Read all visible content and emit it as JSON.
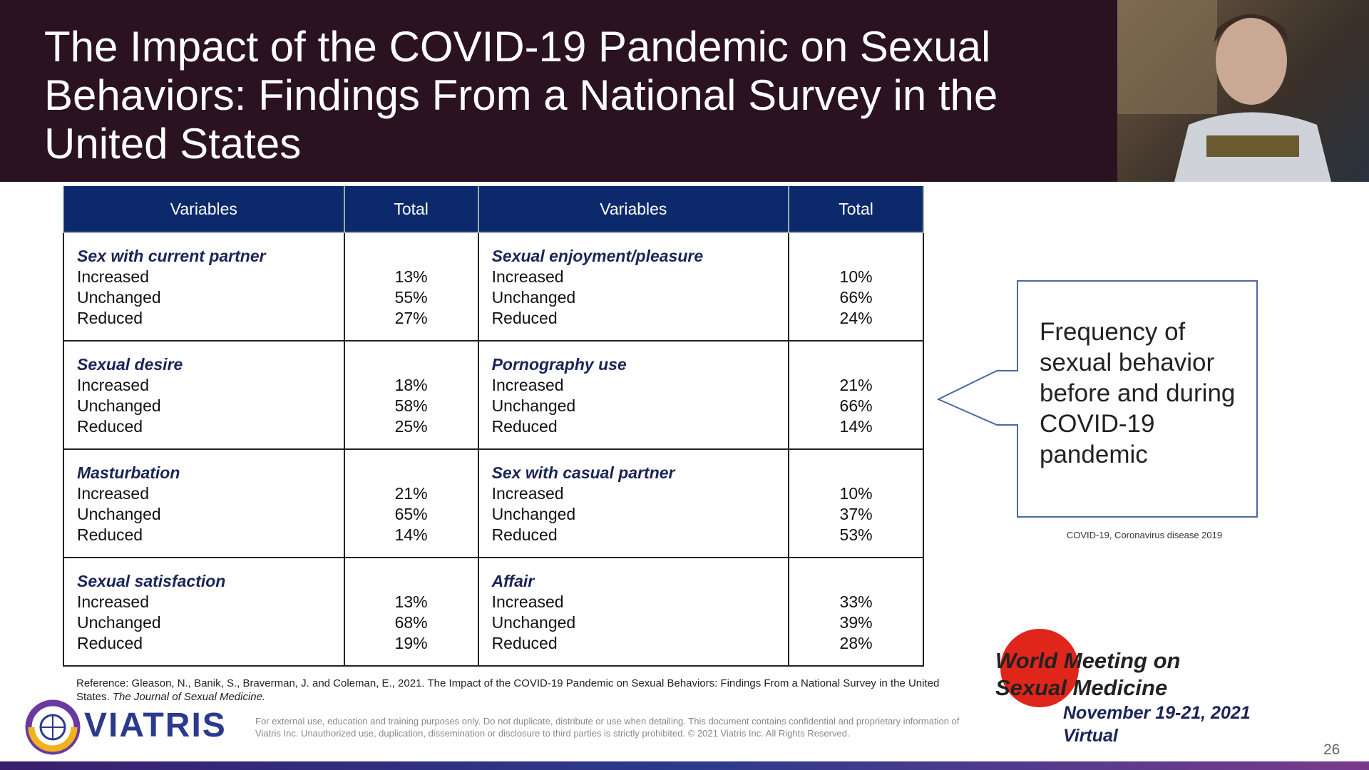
{
  "header": {
    "title": "The Impact of the COVID-19 Pandemic on Sexual Behaviors:  Findings From a National Survey in the United States"
  },
  "table": {
    "columns": [
      "Variables",
      "Total",
      "Variables",
      "Total"
    ],
    "rows": [
      [
        {
          "title": "Sex with current partner",
          "items": [
            {
              "label": "Increased",
              "value": "13%"
            },
            {
              "label": "Unchanged",
              "value": "55%"
            },
            {
              "label": "Reduced",
              "value": "27%"
            }
          ]
        },
        {
          "title": "Sexual enjoyment/pleasure",
          "items": [
            {
              "label": "Increased",
              "value": "10%"
            },
            {
              "label": "Unchanged",
              "value": "66%"
            },
            {
              "label": "Reduced",
              "value": "24%"
            }
          ]
        }
      ],
      [
        {
          "title": "Sexual desire",
          "items": [
            {
              "label": "Increased",
              "value": "18%"
            },
            {
              "label": "Unchanged",
              "value": "58%"
            },
            {
              "label": "Reduced",
              "value": "25%"
            }
          ]
        },
        {
          "title": "Pornography use",
          "items": [
            {
              "label": "Increased",
              "value": "21%"
            },
            {
              "label": "Unchanged",
              "value": "66%"
            },
            {
              "label": "Reduced",
              "value": "14%"
            }
          ]
        }
      ],
      [
        {
          "title": "Masturbation",
          "items": [
            {
              "label": "Increased",
              "value": "21%"
            },
            {
              "label": "Unchanged",
              "value": "65%"
            },
            {
              "label": "Reduced",
              "value": "14%"
            }
          ]
        },
        {
          "title": "Sex with casual partner",
          "items": [
            {
              "label": "Increased",
              "value": "10%"
            },
            {
              "label": "Unchanged",
              "value": "37%"
            },
            {
              "label": "Reduced",
              "value": "53%"
            }
          ]
        }
      ],
      [
        {
          "title": "Sexual satisfaction",
          "items": [
            {
              "label": "Increased",
              "value": "13%"
            },
            {
              "label": "Unchanged",
              "value": "68%"
            },
            {
              "label": "Reduced",
              "value": "19%"
            }
          ]
        },
        {
          "title": "Affair",
          "items": [
            {
              "label": "Increased",
              "value": "33%"
            },
            {
              "label": "Unchanged",
              "value": "39%"
            },
            {
              "label": "Reduced",
              "value": "28%"
            }
          ]
        }
      ]
    ]
  },
  "callout": {
    "text": "Frequency of sexual behavior before and during COVID-19 pandemic",
    "caption": "COVID-19, Coronavirus disease 2019"
  },
  "reference": {
    "text": "Reference: Gleason, N., Banik, S., Braverman, J. and Coleman, E., 2021. The Impact of the COVID-19 Pandemic on Sexual Behaviors: Findings From a National Survey in the United States.",
    "journal": "The Journal of Sexual Medicine."
  },
  "footer": {
    "logo": "VIATRIS",
    "disclaimer": "For external use, education and training purposes only. Do not duplicate, distribute or use when detailing. This document contains confidential and proprietary information of Viatris Inc. Unauthorized use, duplication, dissemination or disclosure to third parties is strictly prohibited. © 2021 Viatris Inc. All Rights Reserved.",
    "event": "World Meeting on Sexual Medicine",
    "dates": "November 19-21, 2021",
    "format": "Virtual",
    "page": "26"
  }
}
